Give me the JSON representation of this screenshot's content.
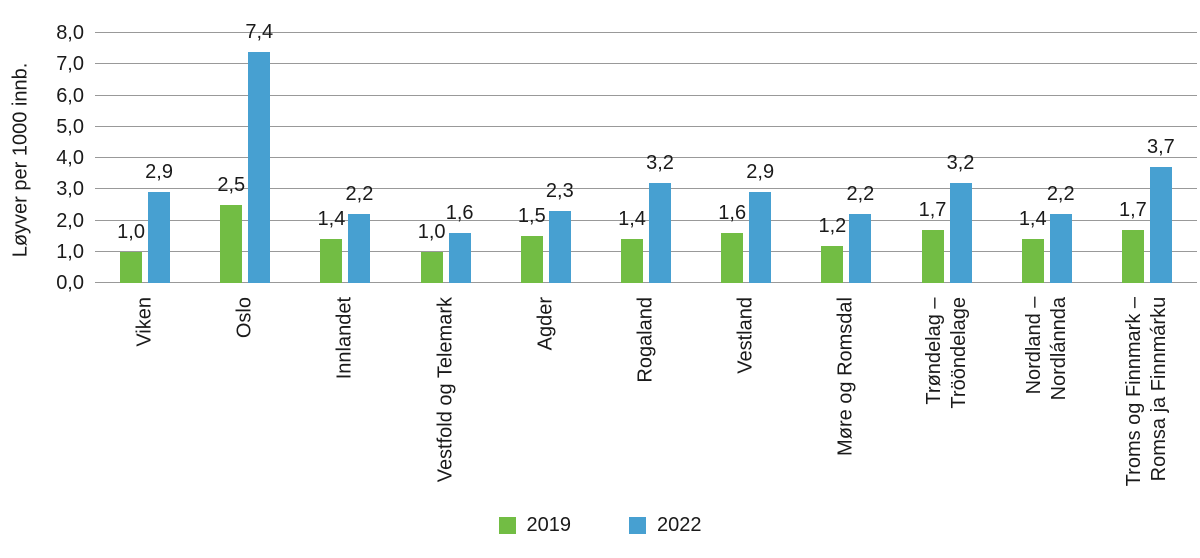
{
  "chart_data": {
    "type": "bar",
    "title": "",
    "xlabel": "",
    "ylabel": "Løyver per 1000 innb.",
    "ylim": [
      0,
      8
    ],
    "grid": "horizontal",
    "legend_position": "bottom-center",
    "yticks": [
      {
        "value": 0,
        "label": "0,0"
      },
      {
        "value": 1,
        "label": "1,0"
      },
      {
        "value": 2,
        "label": "2,0"
      },
      {
        "value": 3,
        "label": "3,0"
      },
      {
        "value": 4,
        "label": "4,0"
      },
      {
        "value": 5,
        "label": "5,0"
      },
      {
        "value": 6,
        "label": "6,0"
      },
      {
        "value": 7,
        "label": "7,0"
      },
      {
        "value": 8,
        "label": "8,0"
      }
    ],
    "categories": [
      {
        "lines": [
          "Viken"
        ]
      },
      {
        "lines": [
          "Oslo"
        ]
      },
      {
        "lines": [
          "Innlandet"
        ]
      },
      {
        "lines": [
          "Vestfold og Telemark"
        ]
      },
      {
        "lines": [
          "Agder"
        ]
      },
      {
        "lines": [
          "Rogaland"
        ]
      },
      {
        "lines": [
          "Vestland"
        ]
      },
      {
        "lines": [
          "Møre og Romsdal"
        ]
      },
      {
        "lines": [
          "Trøndelag –",
          "Trööndelage"
        ]
      },
      {
        "lines": [
          "Nordland –",
          "Nordlánnda"
        ]
      },
      {
        "lines": [
          "Troms og Finnmark –",
          "Romsa ja Finnmárku"
        ]
      }
    ],
    "series": [
      {
        "name": "2019",
        "color": "#72BD44",
        "values": [
          1.0,
          2.5,
          1.4,
          1.0,
          1.5,
          1.4,
          1.6,
          1.2,
          1.7,
          1.4,
          1.7
        ],
        "labels": [
          "1,0",
          "2,5",
          "1,4",
          "1,0",
          "1,5",
          "1,4",
          "1,6",
          "1,2",
          "1,7",
          "1,4",
          "1,7"
        ]
      },
      {
        "name": "2022",
        "color": "#47A0D1",
        "values": [
          2.9,
          7.4,
          2.2,
          1.6,
          2.3,
          3.2,
          2.9,
          2.2,
          3.2,
          2.2,
          3.7
        ],
        "labels": [
          "2,9",
          "7,4",
          "2,2",
          "1,6",
          "2,3",
          "3,2",
          "2,9",
          "2,2",
          "3,2",
          "2,2",
          "3,7"
        ]
      }
    ],
    "colors": {
      "grid": "#999999",
      "text": "#1a1a1a"
    }
  }
}
